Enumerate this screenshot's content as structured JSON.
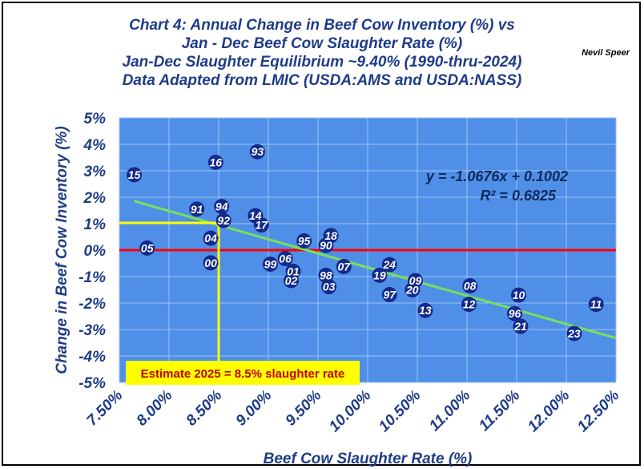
{
  "chart_data": {
    "type": "scatter",
    "title_lines": [
      "Chart 4:  Annual Change in Beef Cow Inventory (%) vs",
      "Jan - Dec Beef Cow Slaughter Rate (%)",
      "Jan-Dec Slaughter Equilibrium ~9.40% (1990-thru-2024)",
      "Data Adapted from LMIC (USDA:AMS and USDA:NASS)"
    ],
    "author": "Nevil Speer",
    "xlabel": "Beef Cow Slaughter Rate (%)",
    "ylabel": "Change in Beef Cow Inventory (%)",
    "xlim": [
      7.5,
      12.5
    ],
    "ylim": [
      -5,
      5
    ],
    "x_ticks": [
      7.5,
      8.0,
      8.5,
      9.0,
      9.5,
      10.0,
      10.5,
      11.0,
      11.5,
      12.0,
      12.5
    ],
    "x_tick_labels": [
      "7.50%",
      "8.00%",
      "8.50%",
      "9.00%",
      "9.50%",
      "10.00%",
      "10.50%",
      "11.00%",
      "11.50%",
      "12.00%",
      "12.50%"
    ],
    "y_ticks": [
      -5,
      -4,
      -3,
      -2,
      -1,
      0,
      1,
      2,
      3,
      4,
      5
    ],
    "y_tick_labels": [
      "-5%",
      "-4%",
      "-3%",
      "-2%",
      "-1%",
      "0%",
      "1%",
      "2%",
      "3%",
      "4%",
      "5%"
    ],
    "grid": "both",
    "points": [
      {
        "label": "15",
        "x": 7.65,
        "y": 2.85
      },
      {
        "label": "05",
        "x": 7.78,
        "y": 0.08
      },
      {
        "label": "91",
        "x": 8.28,
        "y": 1.55
      },
      {
        "label": "04",
        "x": 8.42,
        "y": 0.45
      },
      {
        "label": "00",
        "x": 8.42,
        "y": -0.48
      },
      {
        "label": "16",
        "x": 8.47,
        "y": 3.32
      },
      {
        "label": "94",
        "x": 8.53,
        "y": 1.65
      },
      {
        "label": "92",
        "x": 8.55,
        "y": 1.12
      },
      {
        "label": "93",
        "x": 8.89,
        "y": 3.72
      },
      {
        "label": "14",
        "x": 8.87,
        "y": 1.3
      },
      {
        "label": "17",
        "x": 8.93,
        "y": 0.95
      },
      {
        "label": "99",
        "x": 9.02,
        "y": -0.53
      },
      {
        "label": "06",
        "x": 9.17,
        "y": -0.32
      },
      {
        "label": "01",
        "x": 9.25,
        "y": -0.8
      },
      {
        "label": "02",
        "x": 9.23,
        "y": -1.15
      },
      {
        "label": "95",
        "x": 9.36,
        "y": 0.35
      },
      {
        "label": "90",
        "x": 9.58,
        "y": 0.18
      },
      {
        "label": "98",
        "x": 9.58,
        "y": -0.95
      },
      {
        "label": "18",
        "x": 9.63,
        "y": 0.55
      },
      {
        "label": "03",
        "x": 9.61,
        "y": -1.38
      },
      {
        "label": "07",
        "x": 9.76,
        "y": -0.62
      },
      {
        "label": "19",
        "x": 10.12,
        "y": -0.95
      },
      {
        "label": "24",
        "x": 10.22,
        "y": -0.55
      },
      {
        "label": "97",
        "x": 10.22,
        "y": -1.68
      },
      {
        "label": "09",
        "x": 10.48,
        "y": -1.15
      },
      {
        "label": "20",
        "x": 10.45,
        "y": -1.5
      },
      {
        "label": "13",
        "x": 10.58,
        "y": -2.28
      },
      {
        "label": "08",
        "x": 11.03,
        "y": -1.35
      },
      {
        "label": "12",
        "x": 11.02,
        "y": -2.05
      },
      {
        "label": "10",
        "x": 11.52,
        "y": -1.7
      },
      {
        "label": "96",
        "x": 11.48,
        "y": -2.4
      },
      {
        "label": "21",
        "x": 11.54,
        "y": -2.88
      },
      {
        "label": "23",
        "x": 12.08,
        "y": -3.15
      },
      {
        "label": "11",
        "x": 12.3,
        "y": -2.05
      }
    ],
    "trendline": {
      "slope": -1.0676,
      "intercept": 0.1002,
      "color": "#78e05a"
    },
    "equation_text": "y = -1.0676x + 0.1002",
    "r2_text": "R² = 0.6825",
    "reference_line": {
      "y": 0,
      "color": "#ff0000"
    },
    "estimate": {
      "x": 8.5,
      "y": 1.03,
      "color": "#ffff00",
      "text": "Estimate 2025 = 8.5% slaughter rate"
    },
    "colors": {
      "plot_bg": "#4f8fe8",
      "point": "#132a8c",
      "text": "#1f3c88",
      "grid": "#9ec3f2"
    }
  }
}
